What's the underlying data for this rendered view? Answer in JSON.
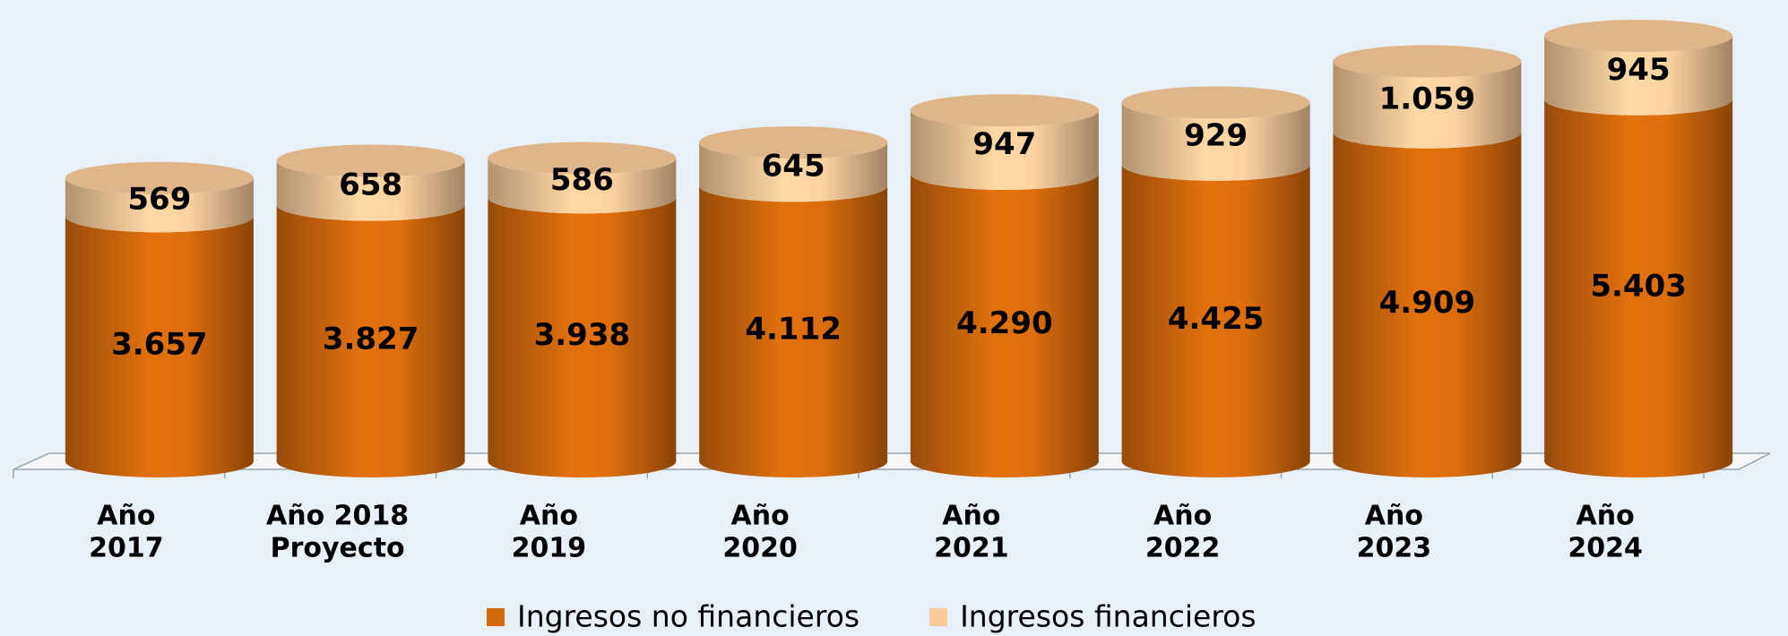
{
  "chart_data": {
    "type": "bar",
    "stacked": true,
    "categories": [
      [
        "Año",
        "2017"
      ],
      [
        "Año 2018",
        "Proyecto"
      ],
      [
        "Año",
        "2019"
      ],
      [
        "Año",
        "2020"
      ],
      [
        "Año",
        "2021"
      ],
      [
        "Año",
        "2022"
      ],
      [
        "Año",
        "2023"
      ],
      [
        "Año",
        "2024"
      ]
    ],
    "series": [
      {
        "name": "Ingresos no financieros",
        "color": "#d2690c",
        "values": [
          3657,
          3827,
          3938,
          4112,
          4290,
          4425,
          4909,
          5403
        ],
        "value_labels": [
          "3.657",
          "3.827",
          "3.938",
          "4.112",
          "4.290",
          "4.425",
          "4.909",
          "5.403"
        ]
      },
      {
        "name": "Ingresos financieros",
        "color": "#f8c999",
        "values": [
          569,
          658,
          586,
          645,
          947,
          929,
          1059,
          945
        ],
        "value_labels": [
          "569",
          "658",
          "586",
          "645",
          "947",
          "929",
          "1.059",
          "945"
        ]
      }
    ]
  }
}
